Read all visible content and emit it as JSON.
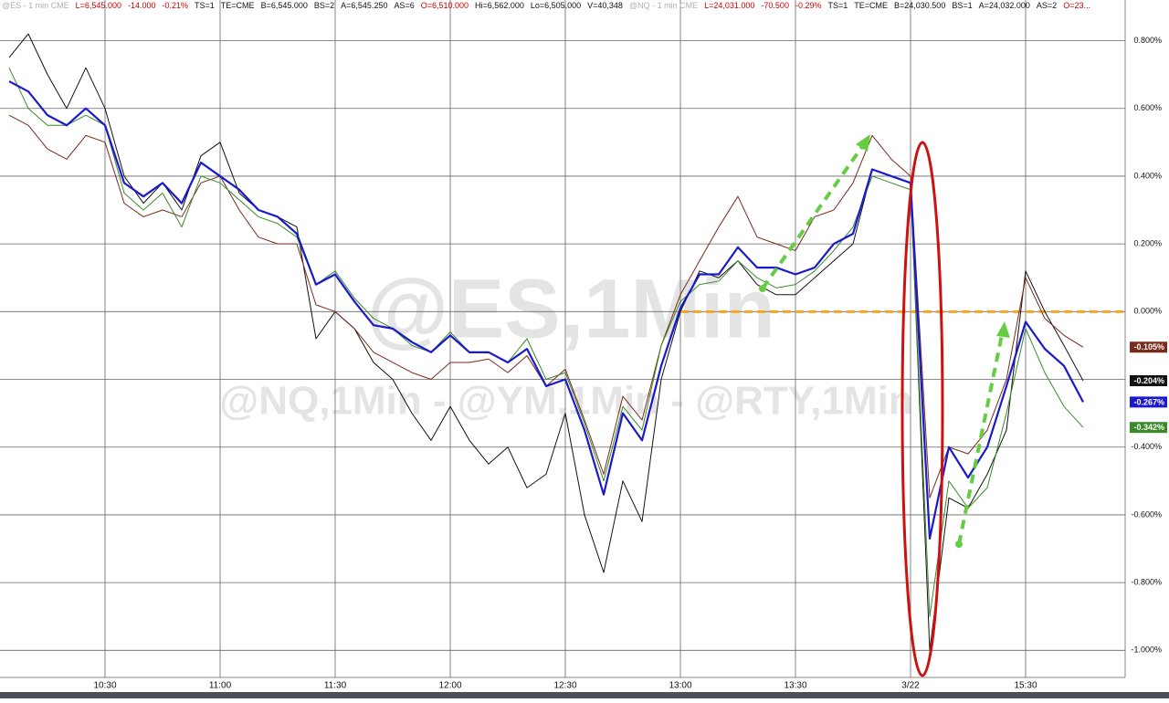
{
  "chart_data": {
    "type": "line",
    "header": [
      {
        "text": "@ES - 1 min  CME",
        "color": "#b0b0b0"
      },
      {
        "text": "L=6,545.000",
        "color": "#cc0000"
      },
      {
        "text": "-14.000",
        "color": "#cc0000"
      },
      {
        "text": "-0.21%",
        "color": "#cc0000"
      },
      {
        "text": "TS=1",
        "color": "#111111"
      },
      {
        "text": "TE=CME",
        "color": "#111111"
      },
      {
        "text": "B=6,545.000",
        "color": "#111111"
      },
      {
        "text": "BS=2",
        "color": "#111111"
      },
      {
        "text": "A=6,545.250",
        "color": "#111111"
      },
      {
        "text": "AS=6",
        "color": "#111111"
      },
      {
        "text": "O=6,510.000",
        "color": "#cc0000"
      },
      {
        "text": "Hi=6,562.000",
        "color": "#111111"
      },
      {
        "text": "Lo=6,505.000",
        "color": "#111111"
      },
      {
        "text": "V=40,348",
        "color": "#111111"
      },
      {
        "text": "@NQ - 1 min  CME",
        "color": "#b0b0b0"
      },
      {
        "text": "L=24,031.000",
        "color": "#cc0000"
      },
      {
        "text": "-70.500",
        "color": "#cc0000"
      },
      {
        "text": "-0.29%",
        "color": "#cc0000"
      },
      {
        "text": "TS=1",
        "color": "#111111"
      },
      {
        "text": "TE=CME",
        "color": "#111111"
      },
      {
        "text": "B=24,030.500",
        "color": "#111111"
      },
      {
        "text": "BS=1",
        "color": "#111111"
      },
      {
        "text": "A=24,032.000",
        "color": "#111111"
      },
      {
        "text": "AS=2",
        "color": "#111111"
      },
      {
        "text": "O=23...",
        "color": "#cc0000"
      }
    ],
    "watermarks": [
      "@ES,1Min",
      "@NQ,1Min - @YM,1Min - @RTY,1Min"
    ],
    "categories": [
      null,
      null,
      null,
      null,
      null,
      "10:30",
      null,
      null,
      null,
      null,
      null,
      "11:00",
      null,
      null,
      null,
      null,
      null,
      "11:30",
      null,
      null,
      null,
      null,
      null,
      "12:00",
      null,
      null,
      null,
      null,
      null,
      "12:30",
      null,
      null,
      null,
      null,
      null,
      "13:00",
      null,
      null,
      null,
      null,
      null,
      "13:30",
      null,
      null,
      null,
      null,
      null,
      "3/22",
      null,
      null,
      null,
      null,
      null,
      "15:30",
      null,
      null,
      null
    ],
    "ylim": [
      -1.08,
      0.92
    ],
    "yticks": [
      {
        "value": 0.8,
        "label": "0.800%"
      },
      {
        "value": 0.6,
        "label": "0.600%"
      },
      {
        "value": 0.4,
        "label": "0.400%"
      },
      {
        "value": 0.2,
        "label": "0.200%"
      },
      {
        "value": 0,
        "label": "0.000%"
      },
      {
        "value": -0.2,
        "label": "-0.200%"
      },
      {
        "value": -0.4,
        "label": "-0.400%"
      },
      {
        "value": -0.6,
        "label": "-0.600%"
      },
      {
        "value": -0.8,
        "label": "-0.800%"
      },
      {
        "value": -1,
        "label": "-1.000%"
      }
    ],
    "grid": true,
    "reference_line": {
      "value": 0,
      "color": "#f5a623",
      "from_category": 35
    },
    "series": [
      {
        "color": "#111111",
        "width": 1,
        "last_label": "-0.204%",
        "values": [
          0.75,
          0.82,
          0.7,
          0.6,
          0.72,
          0.6,
          0.4,
          0.32,
          0.38,
          0.3,
          0.46,
          0.5,
          0.35,
          0.3,
          0.28,
          0.25,
          -0.08,
          0.0,
          -0.05,
          -0.15,
          -0.2,
          -0.3,
          -0.38,
          -0.28,
          -0.38,
          -0.45,
          -0.4,
          -0.52,
          -0.48,
          -0.3,
          -0.6,
          -0.77,
          -0.5,
          -0.62,
          -0.2,
          0.0,
          0.12,
          0.1,
          0.15,
          0.08,
          0.05,
          0.05,
          0.1,
          0.15,
          0.2,
          0.42,
          0.4,
          0.38,
          -1.0,
          -0.55,
          -0.58,
          -0.48,
          -0.35,
          0.12,
          0.0,
          -0.1,
          -0.204
        ]
      },
      {
        "color": "#7a2a1a",
        "width": 1,
        "last_label": "-0.105%",
        "values": [
          0.58,
          0.55,
          0.48,
          0.45,
          0.52,
          0.5,
          0.32,
          0.28,
          0.3,
          0.28,
          0.38,
          0.4,
          0.3,
          0.22,
          0.2,
          0.2,
          0.02,
          0.0,
          -0.05,
          -0.12,
          -0.15,
          -0.18,
          -0.2,
          -0.15,
          -0.15,
          -0.14,
          -0.18,
          -0.13,
          -0.22,
          -0.17,
          -0.32,
          -0.48,
          -0.25,
          -0.32,
          -0.1,
          0.05,
          0.15,
          0.25,
          0.34,
          0.22,
          0.2,
          0.18,
          0.28,
          0.3,
          0.38,
          0.52,
          0.45,
          0.4,
          -0.55,
          -0.4,
          -0.42,
          -0.35,
          -0.2,
          0.1,
          -0.02,
          -0.07,
          -0.105
        ]
      },
      {
        "color": "#3a8a2a",
        "width": 1,
        "last_label": "-0.342%",
        "values": [
          0.72,
          0.6,
          0.55,
          0.55,
          0.58,
          0.55,
          0.35,
          0.3,
          0.35,
          0.25,
          0.4,
          0.38,
          0.33,
          0.28,
          0.26,
          0.22,
          0.08,
          0.12,
          0.04,
          -0.02,
          -0.05,
          -0.1,
          -0.12,
          -0.06,
          -0.12,
          -0.12,
          -0.15,
          -0.08,
          -0.2,
          -0.18,
          -0.33,
          -0.5,
          -0.28,
          -0.35,
          -0.1,
          0.03,
          0.08,
          0.09,
          0.15,
          0.1,
          0.07,
          0.08,
          0.12,
          0.18,
          0.25,
          0.4,
          0.38,
          0.36,
          -0.9,
          -0.5,
          -0.58,
          -0.52,
          -0.3,
          -0.05,
          -0.18,
          -0.28,
          -0.342
        ]
      },
      {
        "color": "#1a1acc",
        "width": 2.2,
        "last_label": "-0.267%",
        "values": [
          0.68,
          0.65,
          0.58,
          0.55,
          0.6,
          0.55,
          0.38,
          0.34,
          0.38,
          0.32,
          0.44,
          0.4,
          0.36,
          0.3,
          0.28,
          0.23,
          0.08,
          0.11,
          0.03,
          -0.04,
          -0.05,
          -0.09,
          -0.12,
          -0.07,
          -0.12,
          -0.12,
          -0.15,
          -0.11,
          -0.22,
          -0.2,
          -0.35,
          -0.54,
          -0.3,
          -0.38,
          -0.16,
          0.01,
          0.11,
          0.11,
          0.19,
          0.13,
          0.13,
          0.11,
          0.13,
          0.2,
          0.23,
          0.42,
          0.4,
          0.38,
          -0.67,
          -0.4,
          -0.49,
          -0.4,
          -0.22,
          -0.03,
          -0.11,
          -0.16,
          -0.267
        ]
      }
    ]
  }
}
